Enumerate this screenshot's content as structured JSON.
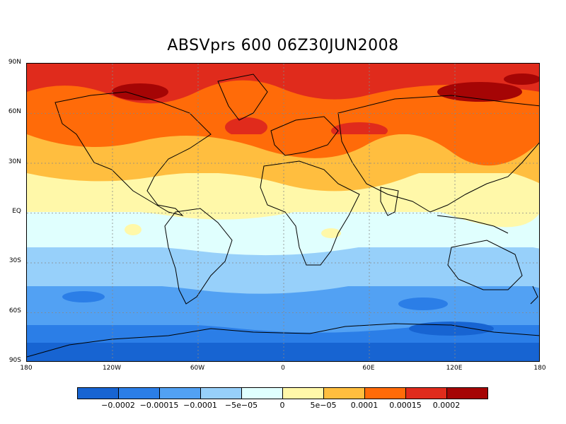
{
  "title": "ABSVprs 600 06Z30JUN2008",
  "lat_labels": [
    "90N",
    "60N",
    "30N",
    "EQ",
    "30S",
    "60S",
    "90S"
  ],
  "lon_labels": [
    "180",
    "120W",
    "60W",
    "0",
    "60E",
    "120E",
    "180"
  ],
  "colorbar": {
    "colors": [
      "#1764d2",
      "#2b7ee7",
      "#52a1f3",
      "#97d0fa",
      "#e0fffe",
      "#fff8a9",
      "#ffbe3f",
      "#ff6b09",
      "#e02b1c",
      "#a50505"
    ],
    "tick_labels": [
      "−0.0002",
      "−0.00015",
      "−0.0001",
      "−5e−05",
      "0",
      "5e−05",
      "0.0001",
      "0.00015",
      "0.0002"
    ]
  },
  "map": {
    "lat_range": [
      -90,
      90
    ],
    "lon_range": [
      -180,
      180
    ],
    "variable": "ABSVprs",
    "level": "600",
    "time": "06Z30JUN2008",
    "grid": "dashed",
    "band_sequence_north_to_south": [
      "dark red",
      "red",
      "orange",
      "light orange",
      "light yellow",
      "pale cyan",
      "light blue",
      "medium blue",
      "blue"
    ]
  }
}
